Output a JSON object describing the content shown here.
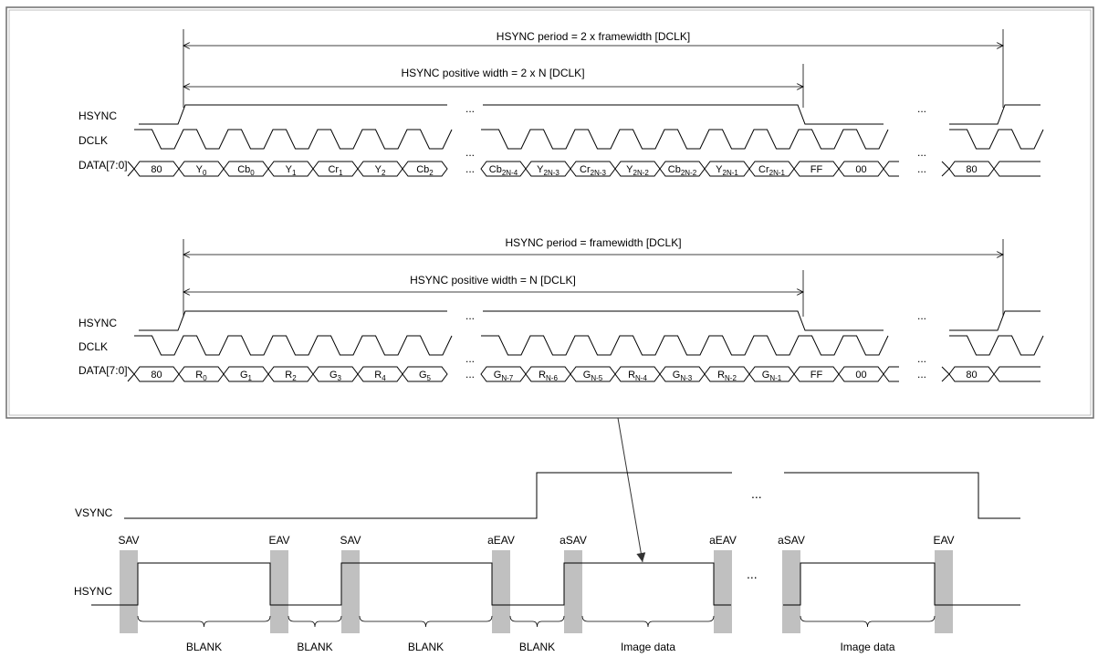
{
  "ellipsis": "...",
  "ycbcr_timing": {
    "period_label": "HSYNC period = 2 x  framewidth [DCLK]",
    "positive_width_label": "HSYNC positive width = 2 x N [DCLK]",
    "signals": [
      "HSYNC",
      "DCLK",
      "DATA[7:0]"
    ],
    "data_left": [
      {
        "b": "80",
        "s": ""
      },
      {
        "b": "Y",
        "s": "0"
      },
      {
        "b": "Cb",
        "s": "0"
      },
      {
        "b": "Y",
        "s": "1"
      },
      {
        "b": "Cr",
        "s": "1"
      },
      {
        "b": "Y",
        "s": "2"
      },
      {
        "b": "Cb",
        "s": "2"
      }
    ],
    "data_right": [
      {
        "b": "Cb",
        "s": "2N-4"
      },
      {
        "b": "Y",
        "s": "2N-3"
      },
      {
        "b": "Cr",
        "s": "2N-3"
      },
      {
        "b": "Y",
        "s": "2N-2"
      },
      {
        "b": "Cb",
        "s": "2N-2"
      },
      {
        "b": "Y",
        "s": "2N-1"
      },
      {
        "b": "Cr",
        "s": "2N-1"
      },
      {
        "b": "FF",
        "s": ""
      },
      {
        "b": "00",
        "s": ""
      }
    ],
    "data_end": {
      "b": "80",
      "s": ""
    }
  },
  "rgb_timing": {
    "period_label": "HSYNC period = framewidth [DCLK]",
    "positive_width_label": "HSYNC positive width = N [DCLK]",
    "signals": [
      "HSYNC",
      "DCLK",
      "DATA[7:0]"
    ],
    "data_left": [
      {
        "b": "80",
        "s": ""
      },
      {
        "b": "R",
        "s": "0"
      },
      {
        "b": "G",
        "s": "1"
      },
      {
        "b": "R",
        "s": "2"
      },
      {
        "b": "G",
        "s": "3"
      },
      {
        "b": "R",
        "s": "4"
      },
      {
        "b": "G",
        "s": "5"
      }
    ],
    "data_right": [
      {
        "b": "G",
        "s": "N-7"
      },
      {
        "b": "R",
        "s": "N-6"
      },
      {
        "b": "G",
        "s": "N-5"
      },
      {
        "b": "R",
        "s": "N-4"
      },
      {
        "b": "G",
        "s": "N-3"
      },
      {
        "b": "R",
        "s": "N-2"
      },
      {
        "b": "G",
        "s": "N-1"
      },
      {
        "b": "FF",
        "s": ""
      },
      {
        "b": "00",
        "s": ""
      }
    ],
    "data_end": {
      "b": "80",
      "s": ""
    }
  },
  "frame_timing": {
    "vsync_label": "VSYNC",
    "hsync_label": "HSYNC",
    "markers": [
      "SAV",
      "EAV",
      "SAV",
      "aEAV",
      "aSAV",
      "aEAV",
      "aSAV",
      "EAV"
    ],
    "intervals": [
      "BLANK",
      "BLANK",
      "BLANK",
      "BLANK",
      "Image data",
      "Image data"
    ]
  }
}
